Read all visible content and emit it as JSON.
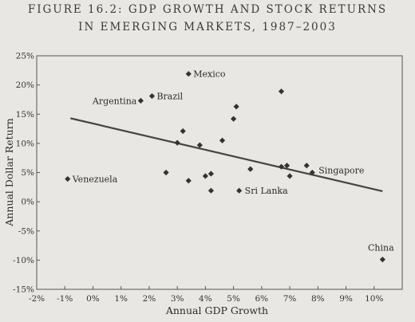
{
  "header": {
    "line1": "FIGURE 16.2: GDP GROWTH AND STOCK RETURNS",
    "line2": "IN EMERGING MARKETS, 1987–2003"
  },
  "colors": {
    "background": "#e9e7e3",
    "marker": "#333333",
    "trend_line": "#444444",
    "frame": "#555555"
  },
  "chart_data": {
    "type": "scatter",
    "title": "FIGURE 16.2: GDP GROWTH AND STOCK RETURNS IN EMERGING MARKETS, 1987–2003",
    "xlabel": "Annual GDP Growth",
    "ylabel": "Annual Dollar Return",
    "xlim": [
      -2,
      11
    ],
    "ylim": [
      -15,
      25
    ],
    "grid": false,
    "x_ticks": [
      "-2%",
      "-1%",
      "0%",
      "1%",
      "2%",
      "3%",
      "4%",
      "5%",
      "6%",
      "7%",
      "8%",
      "9%",
      "10%"
    ],
    "x_tick_values": [
      -2,
      -1,
      0,
      1,
      2,
      3,
      4,
      5,
      6,
      7,
      8,
      9,
      10
    ],
    "y_ticks": [
      "25%",
      "20%",
      "15%",
      "10%",
      "5%",
      "0%",
      "-5%",
      "-10%",
      "-15%"
    ],
    "y_tick_values": [
      25,
      20,
      15,
      10,
      5,
      0,
      -5,
      -10,
      -15
    ],
    "points": [
      {
        "x": -0.9,
        "y": 3.9,
        "label": "Venezuela"
      },
      {
        "x": 1.7,
        "y": 17.3,
        "label": "Argentina"
      },
      {
        "x": 2.1,
        "y": 18.1,
        "label": "Brazil"
      },
      {
        "x": 3.4,
        "y": 21.9,
        "label": "Mexico"
      },
      {
        "x": 5.2,
        "y": 1.9,
        "label": "Sri Lanka"
      },
      {
        "x": 7.8,
        "y": 5.0,
        "label": "Singapore"
      },
      {
        "x": 10.3,
        "y": -9.9,
        "label": "China"
      },
      {
        "x": 2.6,
        "y": 5.0,
        "label": ""
      },
      {
        "x": 3.0,
        "y": 10.1,
        "label": ""
      },
      {
        "x": 3.2,
        "y": 12.1,
        "label": ""
      },
      {
        "x": 3.4,
        "y": 3.6,
        "label": ""
      },
      {
        "x": 3.8,
        "y": 9.7,
        "label": ""
      },
      {
        "x": 4.0,
        "y": 4.4,
        "label": ""
      },
      {
        "x": 4.2,
        "y": 1.9,
        "label": ""
      },
      {
        "x": 4.2,
        "y": 4.8,
        "label": ""
      },
      {
        "x": 4.6,
        "y": 10.5,
        "label": ""
      },
      {
        "x": 5.0,
        "y": 14.2,
        "label": ""
      },
      {
        "x": 5.1,
        "y": 16.3,
        "label": ""
      },
      {
        "x": 5.6,
        "y": 5.6,
        "label": ""
      },
      {
        "x": 6.7,
        "y": 18.9,
        "label": ""
      },
      {
        "x": 6.7,
        "y": 6.0,
        "label": ""
      },
      {
        "x": 6.9,
        "y": 6.2,
        "label": ""
      },
      {
        "x": 7.0,
        "y": 4.4,
        "label": ""
      },
      {
        "x": 7.6,
        "y": 6.2,
        "label": ""
      }
    ],
    "trend_line": {
      "x": [
        -0.8,
        10.3
      ],
      "y": [
        14.3,
        1.8
      ]
    }
  }
}
